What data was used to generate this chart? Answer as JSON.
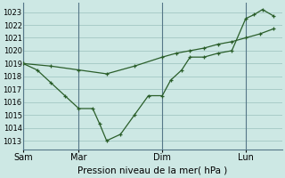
{
  "background_color": "#cde8e4",
  "grid_color": "#a8ccc8",
  "line_color": "#2a5e2a",
  "title": "Pression niveau de la mer( hPa )",
  "ylabel_ticks": [
    1013,
    1014,
    1015,
    1016,
    1017,
    1018,
    1019,
    1020,
    1021,
    1022,
    1023
  ],
  "xlim": [
    0,
    9.3
  ],
  "ylim": [
    1012.3,
    1023.7
  ],
  "xtick_positions": [
    0,
    2,
    5,
    8
  ],
  "xtick_labels": [
    "Sam",
    "Mar",
    "Dim",
    "Lun"
  ],
  "line1_x": [
    0,
    0.5,
    1.0,
    1.5,
    2.0,
    2.5,
    2.75,
    3.0,
    3.5,
    4.0,
    4.5,
    5.0,
    5.3,
    5.7,
    6.0,
    6.5,
    7.0,
    7.5,
    8.0,
    8.3,
    8.6,
    9.0
  ],
  "line1_y": [
    1019.0,
    1018.5,
    1017.5,
    1016.5,
    1015.5,
    1015.5,
    1014.3,
    1013.0,
    1013.5,
    1015.0,
    1016.5,
    1016.5,
    1017.7,
    1018.5,
    1019.5,
    1019.5,
    1019.8,
    1020.0,
    1022.5,
    1022.8,
    1023.2,
    1022.7
  ],
  "line2_x": [
    0,
    1.0,
    2.0,
    3.0,
    4.0,
    5.0,
    5.5,
    6.0,
    6.5,
    7.0,
    7.5,
    8.0,
    8.5,
    9.0
  ],
  "line2_y": [
    1019.0,
    1018.8,
    1018.5,
    1018.2,
    1018.8,
    1019.5,
    1019.8,
    1020.0,
    1020.2,
    1020.5,
    1020.7,
    1021.0,
    1021.3,
    1021.7
  ],
  "ytick_fontsize": 6.0,
  "xtick_fontsize": 7.0,
  "xlabel_fontsize": 7.5
}
